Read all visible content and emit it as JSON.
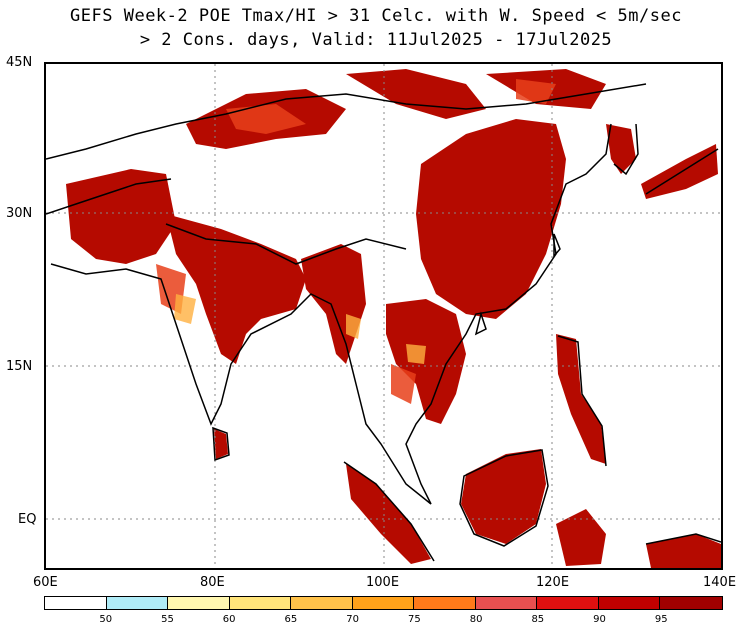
{
  "title": {
    "line1": "GEFS Week-2 POE Tmax/HI > 31 Celc. with W. Speed < 5m/sec",
    "line2": "> 2 Cons. days, Valid: 11Jul2025 - 17Jul2025"
  },
  "map": {
    "lon_range": [
      60,
      140
    ],
    "lat_range": [
      -6,
      45
    ],
    "x_ticks": [
      {
        "lon": 60,
        "label": "60E"
      },
      {
        "lon": 80,
        "label": "80E"
      },
      {
        "lon": 100,
        "label": "100E"
      },
      {
        "lon": 120,
        "label": "120E"
      },
      {
        "lon": 140,
        "label": "140E"
      }
    ],
    "y_ticks": [
      {
        "lat": 45,
        "label": "45N"
      },
      {
        "lat": 30,
        "label": "30N"
      },
      {
        "lat": 15,
        "label": "15N"
      },
      {
        "lat": 0,
        "label": "EQ"
      }
    ],
    "gridlines": "dotted"
  },
  "colorbar": {
    "bins": [
      {
        "color": "#ffffff",
        "label": "50"
      },
      {
        "color": "#b0ecf7",
        "label": "55"
      },
      {
        "color": "#fff7b0",
        "label": "60"
      },
      {
        "color": "#ffe47a",
        "label": "65"
      },
      {
        "color": "#ffc24a",
        "label": "70"
      },
      {
        "color": "#ffa21a",
        "label": "75"
      },
      {
        "color": "#ff7a1a",
        "label": "80"
      },
      {
        "color": "#e85050",
        "label": "85"
      },
      {
        "color": "#e01010",
        "label": "90"
      },
      {
        "color": "#c00000",
        "label": "95"
      },
      {
        "color": "#a00000",
        "label": ""
      }
    ]
  },
  "legend_colors": {
    "high": "#b50a00",
    "mid": "#e8401a",
    "low": "#ffb040"
  }
}
